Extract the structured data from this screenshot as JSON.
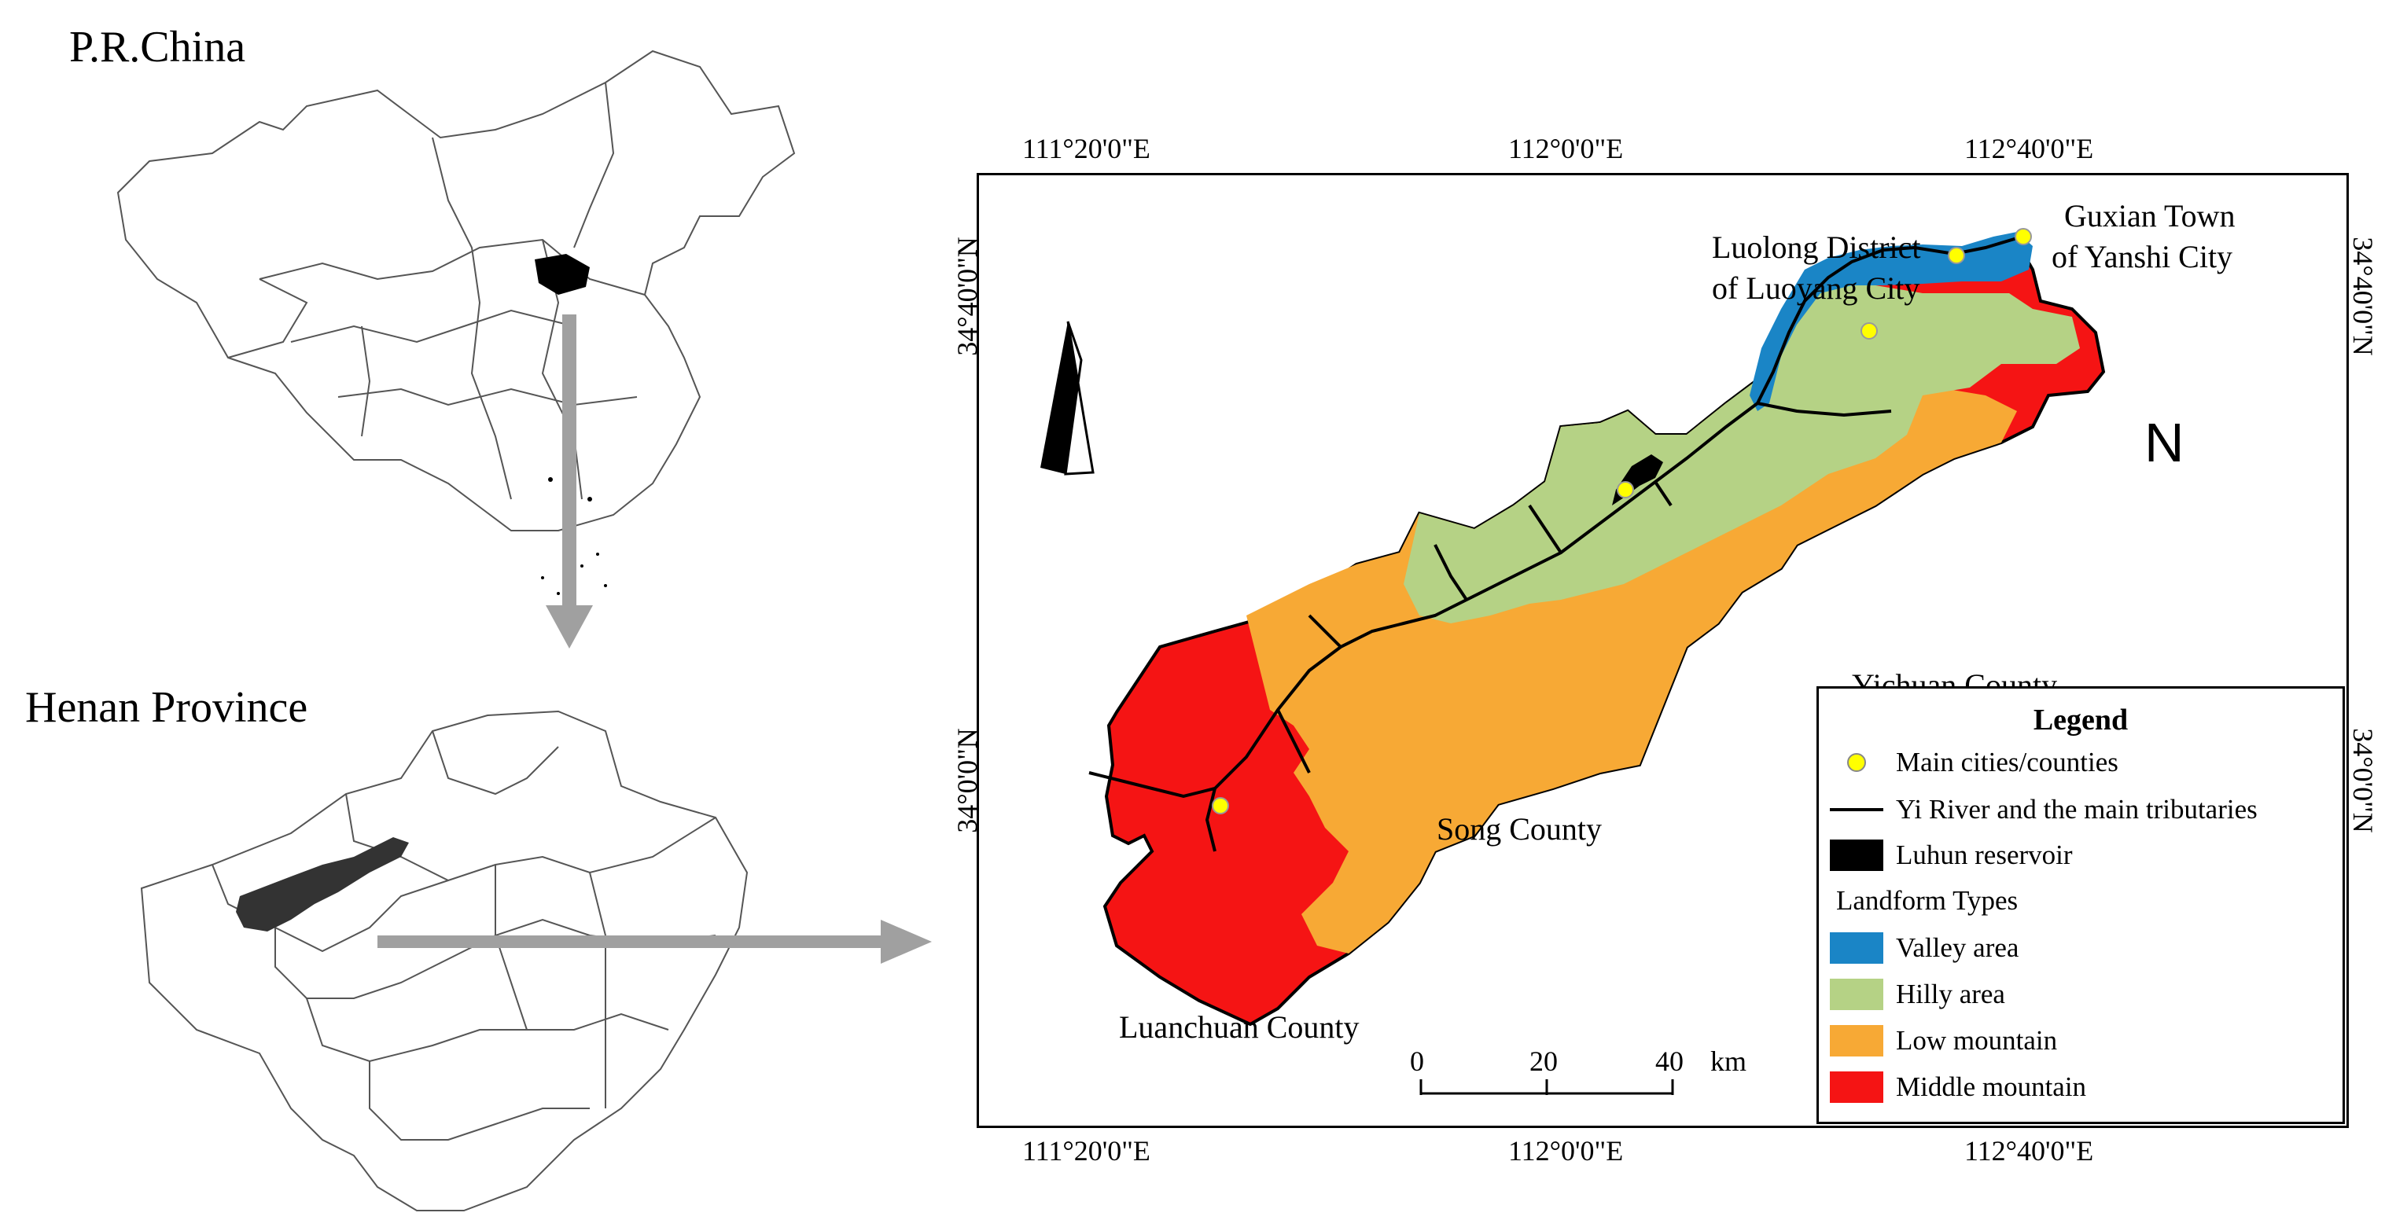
{
  "inset_china": {
    "title": "P.R.China"
  },
  "inset_henan": {
    "title": "Henan Province"
  },
  "map": {
    "top_coords": [
      "111°20'0\"E",
      "112°0'0\"E",
      "112°40'0\"E"
    ],
    "bottom_coords": [
      "111°20'0\"E",
      "112°0'0\"E",
      "112°40'0\"E"
    ],
    "left_coords": [
      "34°40'0\"N",
      "34°0'0\"N"
    ],
    "right_coords": [
      "34°40'0\"N",
      "34°0'0\"N"
    ],
    "north_label": "N",
    "places": {
      "guxian_l1": "Guxian Town",
      "guxian_l2": "of Yanshi City",
      "luolong_l1": "Luolong District",
      "luolong_l2": "of Luoyang City",
      "yichuan": "Yichuan County",
      "song": "Song County",
      "luanchuan": "Luanchuan County"
    },
    "scale": {
      "labels": [
        "0",
        "20",
        "40"
      ],
      "unit": "km"
    }
  },
  "legend": {
    "title": "Legend",
    "cities": "Main cities/counties",
    "river": "Yi River and the main tributaries",
    "reservoir": "Luhun reservoir",
    "landform_title": "Landform Types",
    "landforms": [
      {
        "label": "Valley area",
        "color": "#1a85c6"
      },
      {
        "label": "Hilly area",
        "color": "#b5d285"
      },
      {
        "label": "Low mountain",
        "color": "#f7a935"
      },
      {
        "label": "Middle mountain",
        "color": "#f51414"
      }
    ]
  },
  "colors": {
    "valley": "#1a85c6",
    "hilly": "#b5d285",
    "low_mountain": "#f7a935",
    "middle_mountain": "#f51414",
    "arrow": "#a0a0a0",
    "city_dot": "#ffff00"
  }
}
